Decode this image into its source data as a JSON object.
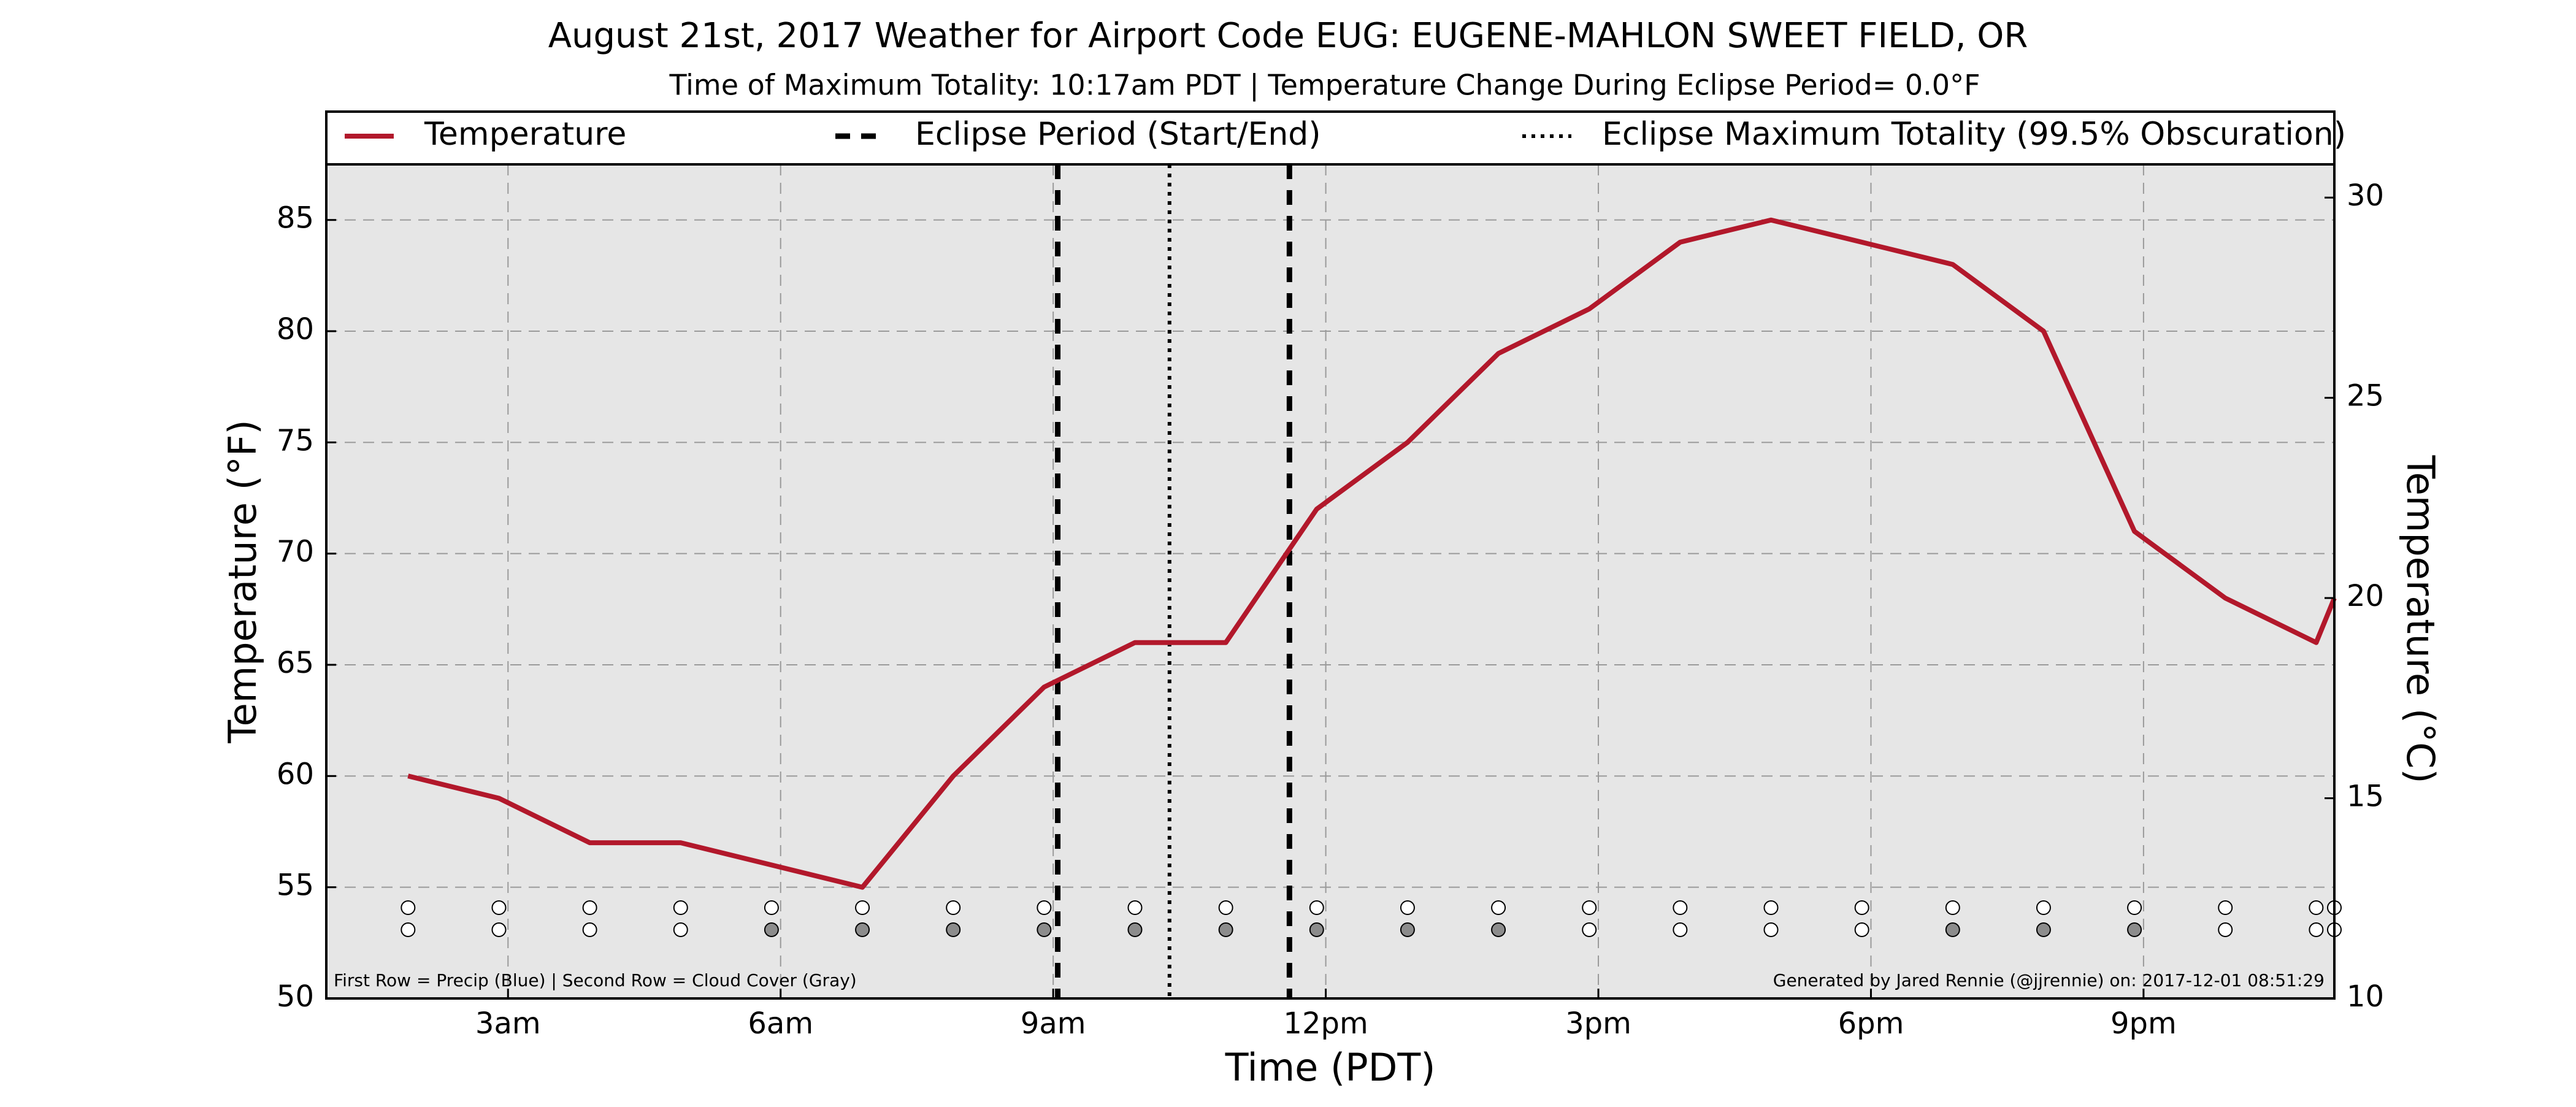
{
  "title": "August 21st, 2017 Weather for Airport Code EUG: EUGENE-MAHLON SWEET FIELD, OR",
  "subtitle": "Time of Maximum Totality: 10:17am PDT | Temperature Change During Eclipse Period= 0.0°F",
  "footer_left": "First Row = Precip (Blue) | Second Row = Cloud Cover (Gray)",
  "footer_right": "Generated by Jared Rennie (@jjrennie) on: 2017-12-01 08:51:29",
  "legend": {
    "temperature": "Temperature",
    "eclipse_period": "Eclipse Period (Start/End)",
    "eclipse_max": "Eclipse Maximum Totality (99.5% Obscuration)"
  },
  "colors": {
    "temperature_line": "#b2182b",
    "plot_background": "#e6e6e6",
    "cloud_fill": "#8c8c8c",
    "clear_fill": "#ffffff"
  },
  "chart_data": {
    "type": "line",
    "title": "August 21st, 2017 Weather for Airport Code EUG: EUGENE-MAHLON SWEET FIELD, OR",
    "xlabel": "Time (PDT)",
    "ylabel": "Temperature (°F)",
    "ylabel_right": "Temperature (°C)",
    "ylim": [
      50,
      87.5
    ],
    "ylim_right": [
      10,
      30.83
    ],
    "xlim": [
      1.0,
      23.1
    ],
    "yticks": [
      50,
      55,
      60,
      65,
      70,
      75,
      80,
      85
    ],
    "yticks_right": [
      10,
      15,
      20,
      25,
      30
    ],
    "xticks": [
      {
        "value": 3,
        "label": "3am"
      },
      {
        "value": 6,
        "label": "6am"
      },
      {
        "value": 9,
        "label": "9am"
      },
      {
        "value": 12,
        "label": "12pm"
      },
      {
        "value": 15,
        "label": "3pm"
      },
      {
        "value": 18,
        "label": "6pm"
      },
      {
        "value": 21,
        "label": "9pm"
      }
    ],
    "grid": true,
    "legend_position": "top",
    "eclipse_start": 9.05,
    "eclipse_end": 11.6,
    "eclipse_max": 10.28,
    "series": [
      {
        "name": "Temperature",
        "points": [
          [
            1.9,
            60
          ],
          [
            2.9,
            59
          ],
          [
            3.9,
            57
          ],
          [
            4.9,
            57
          ],
          [
            5.9,
            56
          ],
          [
            6.9,
            55
          ],
          [
            7.9,
            60
          ],
          [
            8.9,
            64
          ],
          [
            9.9,
            66
          ],
          [
            10.9,
            66
          ],
          [
            11.9,
            72
          ],
          [
            12.9,
            75
          ],
          [
            13.9,
            79
          ],
          [
            14.9,
            81
          ],
          [
            15.9,
            84
          ],
          [
            16.9,
            85
          ],
          [
            17.9,
            84
          ],
          [
            18.9,
            83
          ],
          [
            19.9,
            80
          ],
          [
            20.9,
            71
          ],
          [
            21.9,
            68
          ],
          [
            22.9,
            66
          ],
          [
            23.1,
            68
          ]
        ]
      }
    ],
    "precip_markers": [
      {
        "x": 1.9,
        "precip": false
      },
      {
        "x": 2.9,
        "precip": false
      },
      {
        "x": 3.9,
        "precip": false
      },
      {
        "x": 4.9,
        "precip": false
      },
      {
        "x": 5.9,
        "precip": false
      },
      {
        "x": 6.9,
        "precip": false
      },
      {
        "x": 7.9,
        "precip": false
      },
      {
        "x": 8.9,
        "precip": false
      },
      {
        "x": 9.9,
        "precip": false
      },
      {
        "x": 10.9,
        "precip": false
      },
      {
        "x": 11.9,
        "precip": false
      },
      {
        "x": 12.9,
        "precip": false
      },
      {
        "x": 13.9,
        "precip": false
      },
      {
        "x": 14.9,
        "precip": false
      },
      {
        "x": 15.9,
        "precip": false
      },
      {
        "x": 16.9,
        "precip": false
      },
      {
        "x": 17.9,
        "precip": false
      },
      {
        "x": 18.9,
        "precip": false
      },
      {
        "x": 19.9,
        "precip": false
      },
      {
        "x": 20.9,
        "precip": false
      },
      {
        "x": 21.9,
        "precip": false
      },
      {
        "x": 22.9,
        "precip": false
      },
      {
        "x": 23.9,
        "precip": false
      }
    ],
    "cloud_markers": [
      {
        "x": 1.9,
        "cloudy": false
      },
      {
        "x": 2.9,
        "cloudy": false
      },
      {
        "x": 3.9,
        "cloudy": false
      },
      {
        "x": 4.9,
        "cloudy": false
      },
      {
        "x": 5.9,
        "cloudy": true
      },
      {
        "x": 6.9,
        "cloudy": true
      },
      {
        "x": 7.9,
        "cloudy": true
      },
      {
        "x": 8.9,
        "cloudy": true
      },
      {
        "x": 9.9,
        "cloudy": true
      },
      {
        "x": 10.9,
        "cloudy": true
      },
      {
        "x": 11.9,
        "cloudy": true
      },
      {
        "x": 12.9,
        "cloudy": true
      },
      {
        "x": 13.9,
        "cloudy": true
      },
      {
        "x": 14.9,
        "cloudy": false
      },
      {
        "x": 15.9,
        "cloudy": false
      },
      {
        "x": 16.9,
        "cloudy": false
      },
      {
        "x": 17.9,
        "cloudy": false
      },
      {
        "x": 18.9,
        "cloudy": true
      },
      {
        "x": 19.9,
        "cloudy": true
      },
      {
        "x": 20.9,
        "cloudy": true
      },
      {
        "x": 21.9,
        "cloudy": false
      },
      {
        "x": 22.9,
        "cloudy": false
      },
      {
        "x": 23.9,
        "cloudy": false
      }
    ]
  }
}
